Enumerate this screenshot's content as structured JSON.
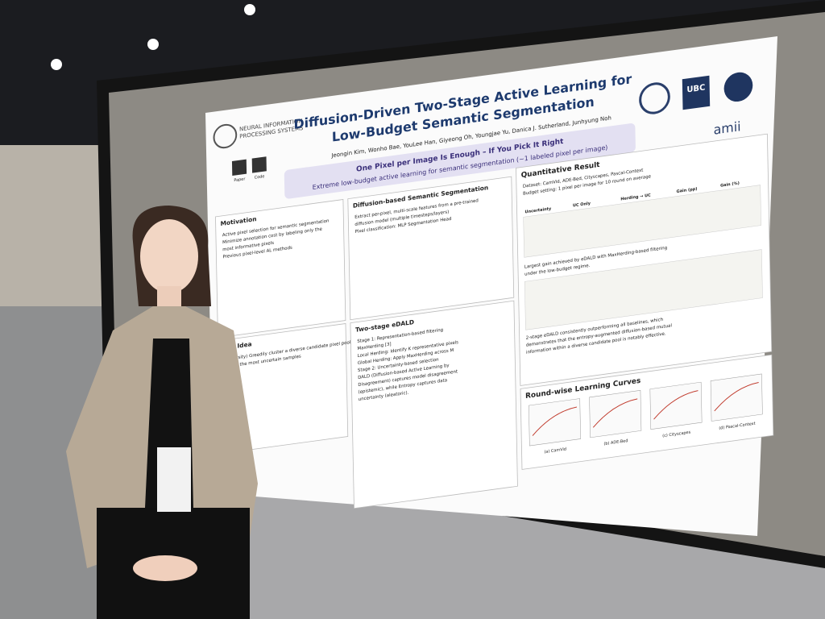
{
  "poster": {
    "conference": [
      "NEURAL INFORMATION",
      "PROCESSING SYSTEMS"
    ],
    "title": [
      "Diffusion-Driven Two-Stage Active Learning for",
      "Low-Budget Semantic Segmentation"
    ],
    "authors": "Jeongin Kim, Wonho Bae, YouLee Han, Giyeong Oh, Youngjae Yu, Danica J. Sutherland, Junhyung Noh",
    "qr_labels": [
      "Paper",
      "Code"
    ],
    "logos": [
      "UBC",
      "amii"
    ],
    "tagline": "One Pixel per Image Is Enough – If You Pick It Right",
    "subtagline": "Extreme low-budget active learning for semantic segmentation (~1 labeled pixel per image)",
    "sections": {
      "motivation": {
        "title": "Motivation",
        "lines": [
          "Active pixel selection for semantic segmentation",
          "Minimize annotation cost by labeling only the",
          "most informative pixels",
          "Previous pixel-level AL methods"
        ]
      },
      "idea": {
        "title": "Our Idea",
        "lines": [
          "(Diversity) Greedily cluster a diverse candidate pixel pool",
          "Select the most uncertain samples"
        ]
      },
      "diffusion": {
        "title": "Diffusion-based Semantic Segmentation",
        "lines": [
          "Extract per-pixel, multi-scale features from a pre-trained",
          "diffusion model (multiple timesteps/layers)",
          "Pixel classification: MLP Segmentation Head"
        ]
      },
      "edald": {
        "title": "Two-stage eDALD",
        "lines": [
          "Stage 1: Representation-based filtering",
          "MaxHerding [3]",
          "Local Herding: Identify K representative pixels",
          "Global Herding: Apply MaxHerding across M",
          "Stage 2: Uncertainty-based selection",
          "DALD (Diffusion-based Active Learning by",
          "Disagreement) captures model disagreement",
          "(epistemic), while Entropy captures data",
          "uncertainty (aleatoric)."
        ]
      },
      "quantitative": {
        "title": "Quantitative Result",
        "lines": [
          "Dataset: CamVid, ADE-Bed, Cityscapes, Pascal-Context",
          "Budget setting: 1 pixel per image for 10 round on average",
          "Largest gain achieved by eDALD with MaxHerding-based filtering",
          "under the low-budget regime.",
          "2-stage eDALD consistently outperforming all baselines, which",
          "demonstrates that the entropy-augmented diffusion-based mutual",
          "information within a diverse candidate pool is notably effective."
        ],
        "table_header": [
          "Uncertainty",
          "UC Only",
          "Herding → UC",
          "Gain (pp)",
          "Gain (%)"
        ]
      },
      "curves": {
        "title": "Round-wise Learning Curves",
        "captions": [
          "(a) CamVid",
          "(b) ADE-Bed",
          "(c) Cityscapes",
          "(d) Pascal-Context"
        ]
      }
    }
  }
}
